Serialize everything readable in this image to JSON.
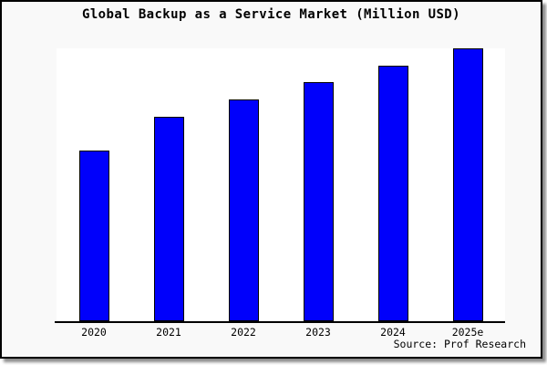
{
  "title": "Global Backup as a Service Market (Million USD)",
  "source": "Source: Prof Research",
  "colors": {
    "bar_fill": "#0000FB",
    "bar_edge": "#000000",
    "plot_background": "#ffffff",
    "card_background": "#f9f9f9",
    "frame": "#000000",
    "text": "#000000"
  },
  "chart_data": {
    "type": "bar",
    "title": "Global Backup as a Service Market (Million USD)",
    "categories": [
      "2020",
      "2021",
      "2022",
      "2023",
      "2024",
      "2025e"
    ],
    "values": [
      3.0,
      3.6,
      3.9,
      4.2,
      4.5,
      4.8
    ],
    "values_estimated": true,
    "xlabel": "",
    "ylabel": "",
    "ylim": [
      0,
      4.8
    ],
    "grid": false,
    "legend": false,
    "y_axis_ticks_visible": false,
    "bar_color": "#0000FB",
    "bar_edge_color": "#000000",
    "source_annotation": "Source: Prof Research"
  }
}
